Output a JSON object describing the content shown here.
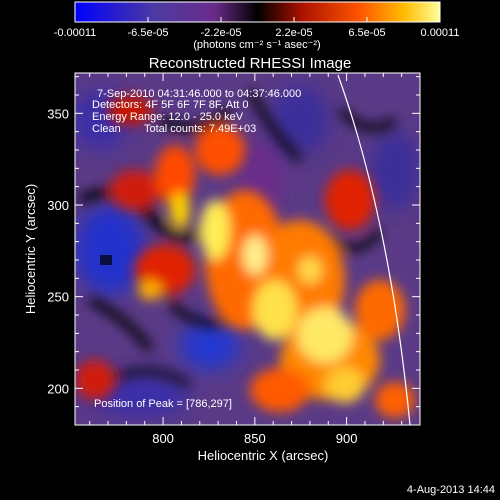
{
  "colorbar": {
    "tick_labels": [
      "-0.00011",
      "-6.5e-05",
      "-2.2e-05",
      "2.2e-05",
      "6.5e-05",
      "0.00011"
    ],
    "units_label": "(photons cm⁻² s⁻¹ asec⁻²)"
  },
  "title": "Reconstructed RHESSI Image",
  "annotations": {
    "time_range": "7-Sep-2010 04:31:46.000 to 04:37:46.000",
    "detectors": "Detectors: 4F 5F 6F 7F 8F, Att 0",
    "energy_range": "Energy Range: 12.0 - 25.0 keV",
    "clean": "Clean",
    "total_counts": "Total counts: 7.49E+03",
    "peak": "Position of Peak = [786,297]"
  },
  "axes": {
    "xlabel": "Heliocentric X (arcsec)",
    "ylabel": "Heliocentric Y (arcsec)",
    "x_ticks": [
      "800",
      "850",
      "900"
    ],
    "y_ticks": [
      "200",
      "250",
      "300",
      "350"
    ],
    "xlim": [
      752,
      940
    ],
    "ylim": [
      180,
      372
    ]
  },
  "footer_date": "4-Aug-2013 14:44",
  "colors": {
    "low": "#0000ff",
    "mid_negative": "#4c2a7a",
    "zero": "#000000",
    "mid_positive": "#ff3300",
    "high": "#ffff66"
  }
}
